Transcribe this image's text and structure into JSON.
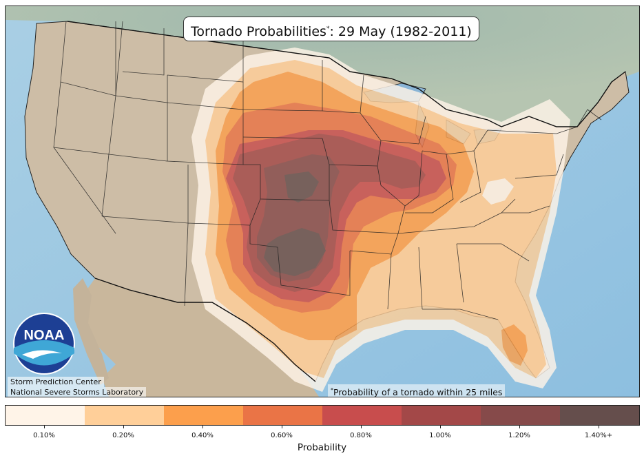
{
  "map": {
    "title": "Tornado Probabilities",
    "title_marker": "*",
    "title_date": ": 29 May (1982-2011)",
    "credits": [
      "Storm Prediction Center",
      "National Severe Storms Laboratory"
    ],
    "logo_text": "NOAA",
    "footnote_marker": "*",
    "footnote": "Probability of a tornado within 25 miles"
  },
  "colorbar": {
    "title": "Probability",
    "levels": [
      "0.10%",
      "0.20%",
      "0.40%",
      "0.60%",
      "0.80%",
      "1.00%",
      "1.20%",
      "1.40%+"
    ],
    "colors": [
      "#fff4e8",
      "#ffcf99",
      "#fc9f4c",
      "#ea7446",
      "#c84d4d",
      "#a34848",
      "#864a4a",
      "#654e4c"
    ]
  }
}
